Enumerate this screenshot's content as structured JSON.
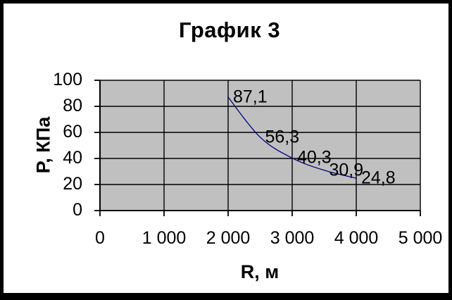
{
  "chart_data": {
    "type": "line",
    "title": "График 3",
    "xlabel": "R, м",
    "ylabel": "P, КПа",
    "xlim": [
      0,
      5000
    ],
    "ylim": [
      0,
      100
    ],
    "grid": "major-both",
    "legend": "none",
    "plot_bg": "#C0C0C0",
    "grid_color": "#000000",
    "axis_color": "#000000",
    "text_color": "#000000",
    "frame_border_color": "#000000",
    "x_ticks": [
      {
        "value": 0,
        "label": "0"
      },
      {
        "value": 1000,
        "label": "1 000"
      },
      {
        "value": 2000,
        "label": "2 000"
      },
      {
        "value": 3000,
        "label": "3 000"
      },
      {
        "value": 4000,
        "label": "4 000"
      },
      {
        "value": 5000,
        "label": "5 000"
      }
    ],
    "y_ticks": [
      {
        "value": 0,
        "label": "0"
      },
      {
        "value": 20,
        "label": "20"
      },
      {
        "value": 40,
        "label": "40"
      },
      {
        "value": 60,
        "label": "60"
      },
      {
        "value": 80,
        "label": "80"
      },
      {
        "value": 100,
        "label": "100"
      }
    ],
    "series": [
      {
        "color": "#000080",
        "smoothed": true,
        "x": [
          2000,
          2500,
          3000,
          3500,
          4000
        ],
        "y": [
          87.1,
          56.3,
          40.3,
          30.9,
          24.8
        ],
        "point_labels": [
          "87,1",
          "56,3",
          "40,3",
          "30,9",
          "24,8"
        ]
      }
    ]
  }
}
